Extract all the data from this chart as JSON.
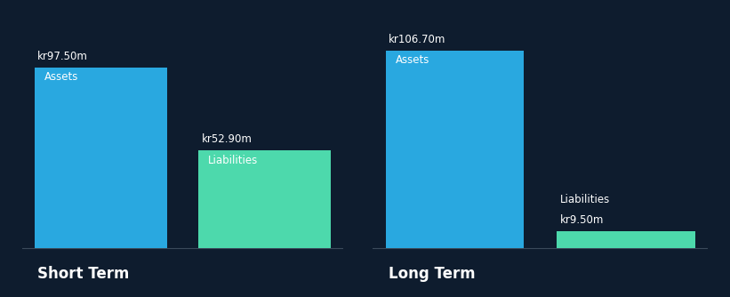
{
  "background_color": "#0e1c2e",
  "asset_color": "#29a8e0",
  "liability_color": "#4dd9ac",
  "text_color": "#ffffff",
  "label_fontsize": 8.5,
  "value_fontsize": 8.5,
  "section_label_fontsize": 12,
  "short_term": {
    "label": "Short Term",
    "assets_value": 97.5,
    "assets_label": "Assets",
    "assets_display": "kr97.50m",
    "liabilities_value": 52.9,
    "liabilities_label": "Liabilities",
    "liabilities_display": "kr52.90m",
    "liab_label_inside": true
  },
  "long_term": {
    "label": "Long Term",
    "assets_value": 106.7,
    "assets_label": "Assets",
    "assets_display": "kr106.70m",
    "liabilities_value": 9.5,
    "liabilities_label": "Liabilities",
    "liabilities_display": "kr9.50m",
    "liab_label_inside": false
  }
}
